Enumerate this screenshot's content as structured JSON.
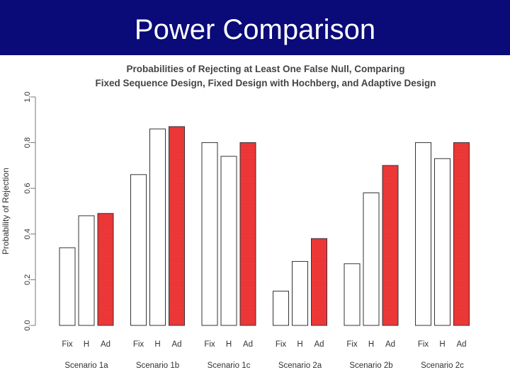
{
  "slide": {
    "title": "Power Comparison",
    "header_color": "#0a0a78"
  },
  "chart_data": {
    "type": "bar",
    "title_lines": [
      "Probabilities of Rejecting at Least One False Null, Comparing",
      "Fixed Sequence Design, Fixed Design with Hochberg, and Adaptive Design"
    ],
    "xlabel": "",
    "ylabel": "Probability of Rejection",
    "ylim": [
      0,
      1
    ],
    "yticks": [
      "0.0",
      "0.2",
      "0.4",
      "0.6",
      "0.8",
      "1.0"
    ],
    "grid": false,
    "bar_labels": [
      "Fix",
      "H",
      "Ad"
    ],
    "categories": [
      "Scenario 1a",
      "Scenario 1b",
      "Scenario 1c",
      "Scenario 2a",
      "Scenario 2b",
      "Scenario 2c"
    ],
    "series": [
      {
        "name": "Fix",
        "color": "#ffffff",
        "values": [
          0.34,
          0.66,
          0.8,
          0.15,
          0.27,
          0.8
        ]
      },
      {
        "name": "H",
        "color": "#ffffff",
        "values": [
          0.48,
          0.86,
          0.74,
          0.28,
          0.58,
          0.73
        ]
      },
      {
        "name": "Ad",
        "color": "#f03a3a",
        "values": [
          0.49,
          0.87,
          0.8,
          0.38,
          0.7,
          0.8
        ]
      }
    ]
  }
}
